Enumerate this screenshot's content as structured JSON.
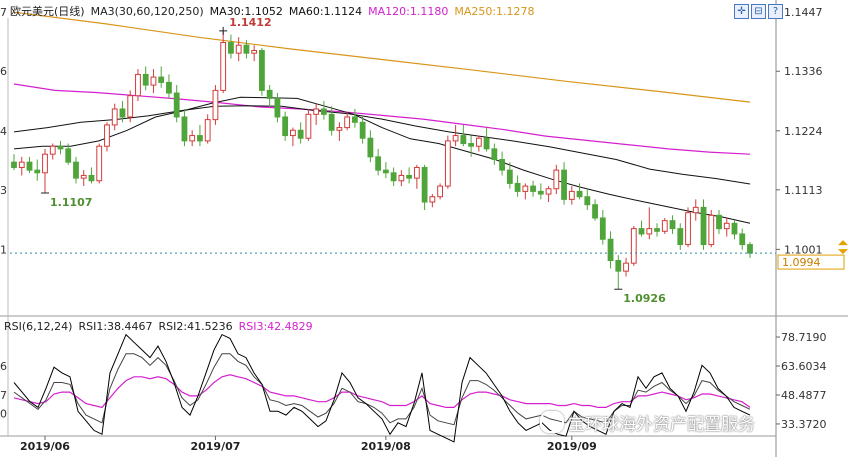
{
  "header": {
    "symbol": "欧元美元(日线)",
    "ma_label": "MA3(30,60,120,250)",
    "ma30": "MA30:1.1052",
    "ma60": "MA60:1.1124",
    "ma120": "MA120:1.1180",
    "ma250": "MA250:1.1278"
  },
  "rsi_header": {
    "params": "RSI(6,12,24)",
    "rsi1": "RSI1:38.4467",
    "rsi2": "RSI2:41.5236",
    "rsi3": "RSI3:42.4829"
  },
  "watermark": "宝环球海外资产配置服务",
  "colors": {
    "up": "#d33b3b",
    "down": "#4fa53b",
    "ma30": "#111111",
    "ma60": "#111111",
    "ma120": "#d51fcf",
    "ma250": "#d9951a",
    "last_price_line": "#2a8fa0"
  },
  "chart_data": {
    "type": "candlestick",
    "ylim": [
      1.087,
      1.147
    ],
    "price_ticks": [
      "1.1447",
      "1.1336",
      "1.1224",
      "1.1113",
      "1.1001"
    ],
    "left_tick_fragments": [
      "7",
      "6",
      "4",
      "3",
      "1"
    ],
    "x_ticks": [
      "2019/06",
      "2019/07",
      "2019/08",
      "2019/09"
    ],
    "last_price": "1.0994",
    "annotations": [
      {
        "label": "1.1412",
        "bar": 27,
        "kind": "high"
      },
      {
        "label": "1.1107",
        "bar": 4,
        "kind": "low"
      },
      {
        "label": "1.0926",
        "bar": 78,
        "kind": "low"
      }
    ],
    "ohlc": [
      [
        1.1165,
        1.118,
        1.115,
        1.1155
      ],
      [
        1.1155,
        1.1175,
        1.114,
        1.1165
      ],
      [
        1.1165,
        1.1175,
        1.1145,
        1.115
      ],
      [
        1.115,
        1.117,
        1.113,
        1.1145
      ],
      [
        1.1145,
        1.119,
        1.1107,
        1.118
      ],
      [
        1.118,
        1.12,
        1.117,
        1.1195
      ],
      [
        1.1195,
        1.1205,
        1.118,
        1.119
      ],
      [
        1.119,
        1.12,
        1.116,
        1.1165
      ],
      [
        1.1165,
        1.1175,
        1.1125,
        1.1135
      ],
      [
        1.1135,
        1.115,
        1.112,
        1.114
      ],
      [
        1.114,
        1.1155,
        1.1125,
        1.113
      ],
      [
        1.113,
        1.12,
        1.1125,
        1.1195
      ],
      [
        1.1195,
        1.124,
        1.1185,
        1.1235
      ],
      [
        1.1235,
        1.1275,
        1.1225,
        1.1265
      ],
      [
        1.1265,
        1.128,
        1.124,
        1.125
      ],
      [
        1.125,
        1.13,
        1.124,
        1.129
      ],
      [
        1.129,
        1.134,
        1.128,
        1.133
      ],
      [
        1.133,
        1.1345,
        1.13,
        1.131
      ],
      [
        1.131,
        1.134,
        1.1295,
        1.1325
      ],
      [
        1.1325,
        1.1345,
        1.1305,
        1.1315
      ],
      [
        1.1315,
        1.133,
        1.1285,
        1.1295
      ],
      [
        1.1295,
        1.131,
        1.124,
        1.125
      ],
      [
        1.125,
        1.1265,
        1.1195,
        1.1205
      ],
      [
        1.1205,
        1.1225,
        1.1195,
        1.1215
      ],
      [
        1.1215,
        1.1235,
        1.1195,
        1.1205
      ],
      [
        1.1205,
        1.1255,
        1.12,
        1.1245
      ],
      [
        1.1245,
        1.131,
        1.1235,
        1.13
      ],
      [
        1.13,
        1.1412,
        1.1295,
        1.139
      ],
      [
        1.139,
        1.1405,
        1.136,
        1.137
      ],
      [
        1.137,
        1.14,
        1.1355,
        1.1385
      ],
      [
        1.1385,
        1.1395,
        1.136,
        1.137
      ],
      [
        1.137,
        1.1385,
        1.1355,
        1.1375
      ],
      [
        1.1375,
        1.138,
        1.129,
        1.13
      ],
      [
        1.13,
        1.131,
        1.127,
        1.1285
      ],
      [
        1.1285,
        1.1295,
        1.124,
        1.125
      ],
      [
        1.125,
        1.126,
        1.1205,
        1.1215
      ],
      [
        1.1215,
        1.123,
        1.1195,
        1.1225
      ],
      [
        1.1225,
        1.124,
        1.12,
        1.121
      ],
      [
        1.121,
        1.1265,
        1.1205,
        1.1255
      ],
      [
        1.1255,
        1.1275,
        1.1235,
        1.1265
      ],
      [
        1.1265,
        1.128,
        1.1245,
        1.1255
      ],
      [
        1.1255,
        1.127,
        1.1215,
        1.1225
      ],
      [
        1.1225,
        1.124,
        1.1205,
        1.123
      ],
      [
        1.123,
        1.126,
        1.1225,
        1.125
      ],
      [
        1.125,
        1.1265,
        1.123,
        1.124
      ],
      [
        1.124,
        1.125,
        1.12,
        1.121
      ],
      [
        1.121,
        1.1225,
        1.1165,
        1.1175
      ],
      [
        1.1175,
        1.119,
        1.114,
        1.115
      ],
      [
        1.115,
        1.1165,
        1.1135,
        1.1145
      ],
      [
        1.1145,
        1.1155,
        1.112,
        1.113
      ],
      [
        1.113,
        1.115,
        1.112,
        1.114
      ],
      [
        1.114,
        1.1155,
        1.1125,
        1.1135
      ],
      [
        1.1135,
        1.116,
        1.1115,
        1.1155
      ],
      [
        1.1155,
        1.116,
        1.1075,
        1.109
      ],
      [
        1.109,
        1.1105,
        1.108,
        1.11
      ],
      [
        1.11,
        1.1125,
        1.1095,
        1.112
      ],
      [
        1.112,
        1.1215,
        1.1115,
        1.1205
      ],
      [
        1.1205,
        1.1235,
        1.1195,
        1.1215
      ],
      [
        1.1215,
        1.1235,
        1.1195,
        1.12
      ],
      [
        1.12,
        1.1215,
        1.1175,
        1.1195
      ],
      [
        1.1195,
        1.1215,
        1.1185,
        1.121
      ],
      [
        1.121,
        1.123,
        1.1185,
        1.119
      ],
      [
        1.119,
        1.12,
        1.116,
        1.117
      ],
      [
        1.117,
        1.1185,
        1.114,
        1.115
      ],
      [
        1.115,
        1.1165,
        1.1115,
        1.1125
      ],
      [
        1.1125,
        1.114,
        1.11,
        1.111
      ],
      [
        1.111,
        1.1125,
        1.1095,
        1.112
      ],
      [
        1.112,
        1.113,
        1.11,
        1.111
      ],
      [
        1.111,
        1.1125,
        1.1095,
        1.1105
      ],
      [
        1.1105,
        1.112,
        1.109,
        1.1115
      ],
      [
        1.1115,
        1.116,
        1.1105,
        1.115
      ],
      [
        1.115,
        1.1165,
        1.1085,
        1.1095
      ],
      [
        1.1095,
        1.112,
        1.1085,
        1.111
      ],
      [
        1.111,
        1.1125,
        1.1095,
        1.11
      ],
      [
        1.11,
        1.1115,
        1.1075,
        1.1085
      ],
      [
        1.1085,
        1.1095,
        1.1055,
        1.106
      ],
      [
        1.106,
        1.1075,
        1.101,
        1.102
      ],
      [
        1.102,
        1.1035,
        1.0965,
        1.098
      ],
      [
        1.098,
        1.099,
        1.0926,
        1.096
      ],
      [
        1.096,
        1.0985,
        1.095,
        1.0975
      ],
      [
        1.0975,
        1.1045,
        1.097,
        1.104
      ],
      [
        1.104,
        1.1055,
        1.1025,
        1.103
      ],
      [
        1.103,
        1.108,
        1.102,
        1.104
      ],
      [
        1.104,
        1.105,
        1.1025,
        1.1035
      ],
      [
        1.1035,
        1.106,
        1.103,
        1.1055
      ],
      [
        1.1055,
        1.1065,
        1.103,
        1.104
      ],
      [
        1.104,
        1.105,
        1.1,
        1.101
      ],
      [
        1.101,
        1.108,
        1.1005,
        1.107
      ],
      [
        1.107,
        1.1095,
        1.1055,
        1.108
      ],
      [
        1.108,
        1.1095,
        1.1,
        1.101
      ],
      [
        1.101,
        1.1075,
        1.1005,
        1.1065
      ],
      [
        1.1065,
        1.1075,
        1.103,
        1.104
      ],
      [
        1.104,
        1.106,
        1.1025,
        1.105
      ],
      [
        1.105,
        1.1055,
        1.102,
        1.103
      ],
      [
        1.103,
        1.104,
        1.1,
        1.101
      ],
      [
        1.101,
        1.1015,
        1.0985,
        1.0994
      ]
    ],
    "ma30": [
      1.119,
      1.1195,
      1.1195,
      1.1205,
      1.1225,
      1.125,
      1.1262,
      1.1276,
      1.1287,
      1.1286,
      1.1285,
      1.127,
      1.1255,
      1.123,
      1.1209,
      1.12,
      1.1185,
      1.117,
      1.115,
      1.1133,
      1.1118,
      1.1105,
      1.1093,
      1.1082,
      1.1071,
      1.1062,
      1.105
    ],
    "ma60": [
      1.1222,
      1.123,
      1.124,
      1.1245,
      1.1252,
      1.1262,
      1.127,
      1.1271,
      1.127,
      1.1262,
      1.1256,
      1.1246,
      1.1233,
      1.1222,
      1.1213,
      1.1204,
      1.1194,
      1.1182,
      1.117,
      1.1152,
      1.1142,
      1.1134,
      1.1124
    ],
    "ma120": [
      1.1312,
      1.13,
      1.1296,
      1.129,
      1.1284,
      1.1277,
      1.1269,
      1.1265,
      1.126,
      1.1253,
      1.1246,
      1.1236,
      1.1226,
      1.1214,
      1.1206,
      1.1198,
      1.119,
      1.1184,
      1.118
    ],
    "ma250": [
      1.1447,
      1.1425,
      1.14,
      1.1378,
      1.1358,
      1.1338,
      1.1317,
      1.1298,
      1.1278
    ],
    "rsi": {
      "ylim": [
        25,
        85
      ],
      "ticks": [
        "78.7190",
        "63.6034",
        "48.4877",
        "33.3720"
      ],
      "left_ticks": [
        "6",
        "7",
        "0"
      ],
      "rsi1": [
        55,
        50,
        45,
        42,
        52,
        63,
        60,
        58,
        40,
        35,
        30,
        28,
        60,
        70,
        80,
        76,
        72,
        68,
        74,
        66,
        55,
        42,
        38,
        48,
        60,
        72,
        80,
        78,
        70,
        68,
        60,
        54,
        40,
        40,
        38,
        42,
        40,
        36,
        32,
        35,
        46,
        60,
        55,
        47,
        44,
        40,
        36,
        28,
        34,
        32,
        44,
        60,
        30,
        28,
        26,
        24,
        55,
        68,
        64,
        60,
        54,
        48,
        40,
        34,
        30,
        32,
        34,
        30,
        28,
        27,
        40,
        35,
        32,
        30,
        28,
        40,
        44,
        42,
        58,
        52,
        58,
        60,
        52,
        48,
        40,
        50,
        64,
        60,
        52,
        48,
        42,
        40,
        38
      ],
      "rsi2": [
        50,
        47,
        44,
        41,
        46,
        55,
        55,
        54,
        44,
        38,
        36,
        34,
        52,
        62,
        70,
        70,
        68,
        64,
        68,
        64,
        56,
        47,
        43,
        46,
        54,
        63,
        70,
        70,
        66,
        64,
        58,
        54,
        46,
        45,
        43,
        44,
        43,
        40,
        37,
        39,
        44,
        52,
        50,
        45,
        44,
        42,
        39,
        34,
        36,
        36,
        42,
        52,
        38,
        35,
        34,
        33,
        47,
        56,
        56,
        54,
        51,
        47,
        43,
        39,
        36,
        37,
        38,
        36,
        35,
        34,
        40,
        37,
        36,
        35,
        34,
        40,
        43,
        43,
        51,
        50,
        53,
        55,
        51,
        48,
        44,
        48,
        56,
        55,
        51,
        48,
        45,
        43,
        41
      ],
      "rsi3": [
        47,
        46,
        45,
        44,
        45,
        49,
        50,
        50,
        47,
        44,
        43,
        42,
        47,
        52,
        56,
        58,
        58,
        57,
        58,
        57,
        54,
        50,
        48,
        48,
        51,
        55,
        58,
        59,
        58,
        57,
        55,
        53,
        50,
        49,
        48,
        48,
        47,
        46,
        45,
        45,
        47,
        50,
        50,
        48,
        47,
        46,
        45,
        43,
        43,
        43,
        45,
        48,
        44,
        43,
        42,
        42,
        46,
        49,
        50,
        50,
        49,
        48,
        46,
        45,
        44,
        44,
        44,
        44,
        43,
        43,
        44,
        43,
        43,
        42,
        42,
        44,
        45,
        45,
        48,
        48,
        49,
        50,
        49,
        48,
        46,
        47,
        49,
        49,
        48,
        47,
        46,
        45,
        42
      ]
    }
  }
}
